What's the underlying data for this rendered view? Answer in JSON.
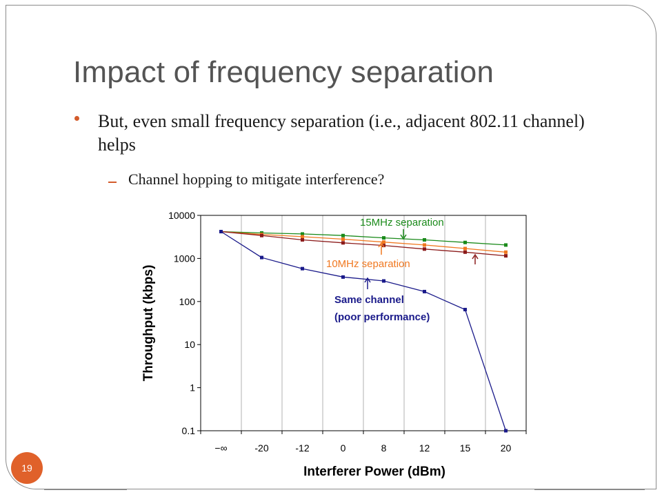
{
  "slide": {
    "title": "Impact of frequency separation",
    "bullet": "But, even small frequency separation (i.e., adjacent 802.11 channel) helps",
    "sub_bullet": "Channel hopping to mitigate interference?",
    "page_number": "19"
  },
  "colors": {
    "title": "#545454",
    "accent": "#d35b2b",
    "badge": "#e0612a",
    "series_15mhz": "#1a8a1a",
    "series_10mhz": "#f07820",
    "series_10mhz_markers": "#8b1a1a",
    "series_same": "#1a1a8a"
  },
  "chart_data": {
    "type": "line",
    "xlabel": "Interferer Power (dBm)",
    "ylabel": "Throughput (kbps)",
    "y_scale": "log",
    "ylim": [
      0.1,
      10000
    ],
    "y_ticks": [
      "10000",
      "1000",
      "100",
      "10",
      "1",
      "0.1"
    ],
    "y_tick_values": [
      10000,
      1000,
      100,
      10,
      1,
      0.1
    ],
    "categories": [
      "−∞",
      "-20",
      "-12",
      "0",
      "8",
      "12",
      "15",
      "20"
    ],
    "grid": "vertical",
    "series": [
      {
        "key": "15mhz",
        "values": [
          4200,
          3900,
          3700,
          3400,
          3000,
          2700,
          2350,
          2050
        ]
      },
      {
        "key": "10mhz_orange",
        "values": [
          4200,
          3600,
          3200,
          2800,
          2400,
          2050,
          1700,
          1400
        ]
      },
      {
        "key": "10mhz_dark",
        "values": [
          4200,
          3400,
          2700,
          2300,
          2000,
          1650,
          1400,
          1150
        ]
      },
      {
        "key": "same",
        "values": [
          4200,
          1050,
          580,
          370,
          300,
          170,
          65,
          0.1
        ]
      }
    ],
    "annotations": {
      "label_15mhz": "15MHz separation",
      "label_10mhz": "10MHz separation",
      "label_same_1": "Same channel",
      "label_same_2": "(poor performance)"
    }
  }
}
